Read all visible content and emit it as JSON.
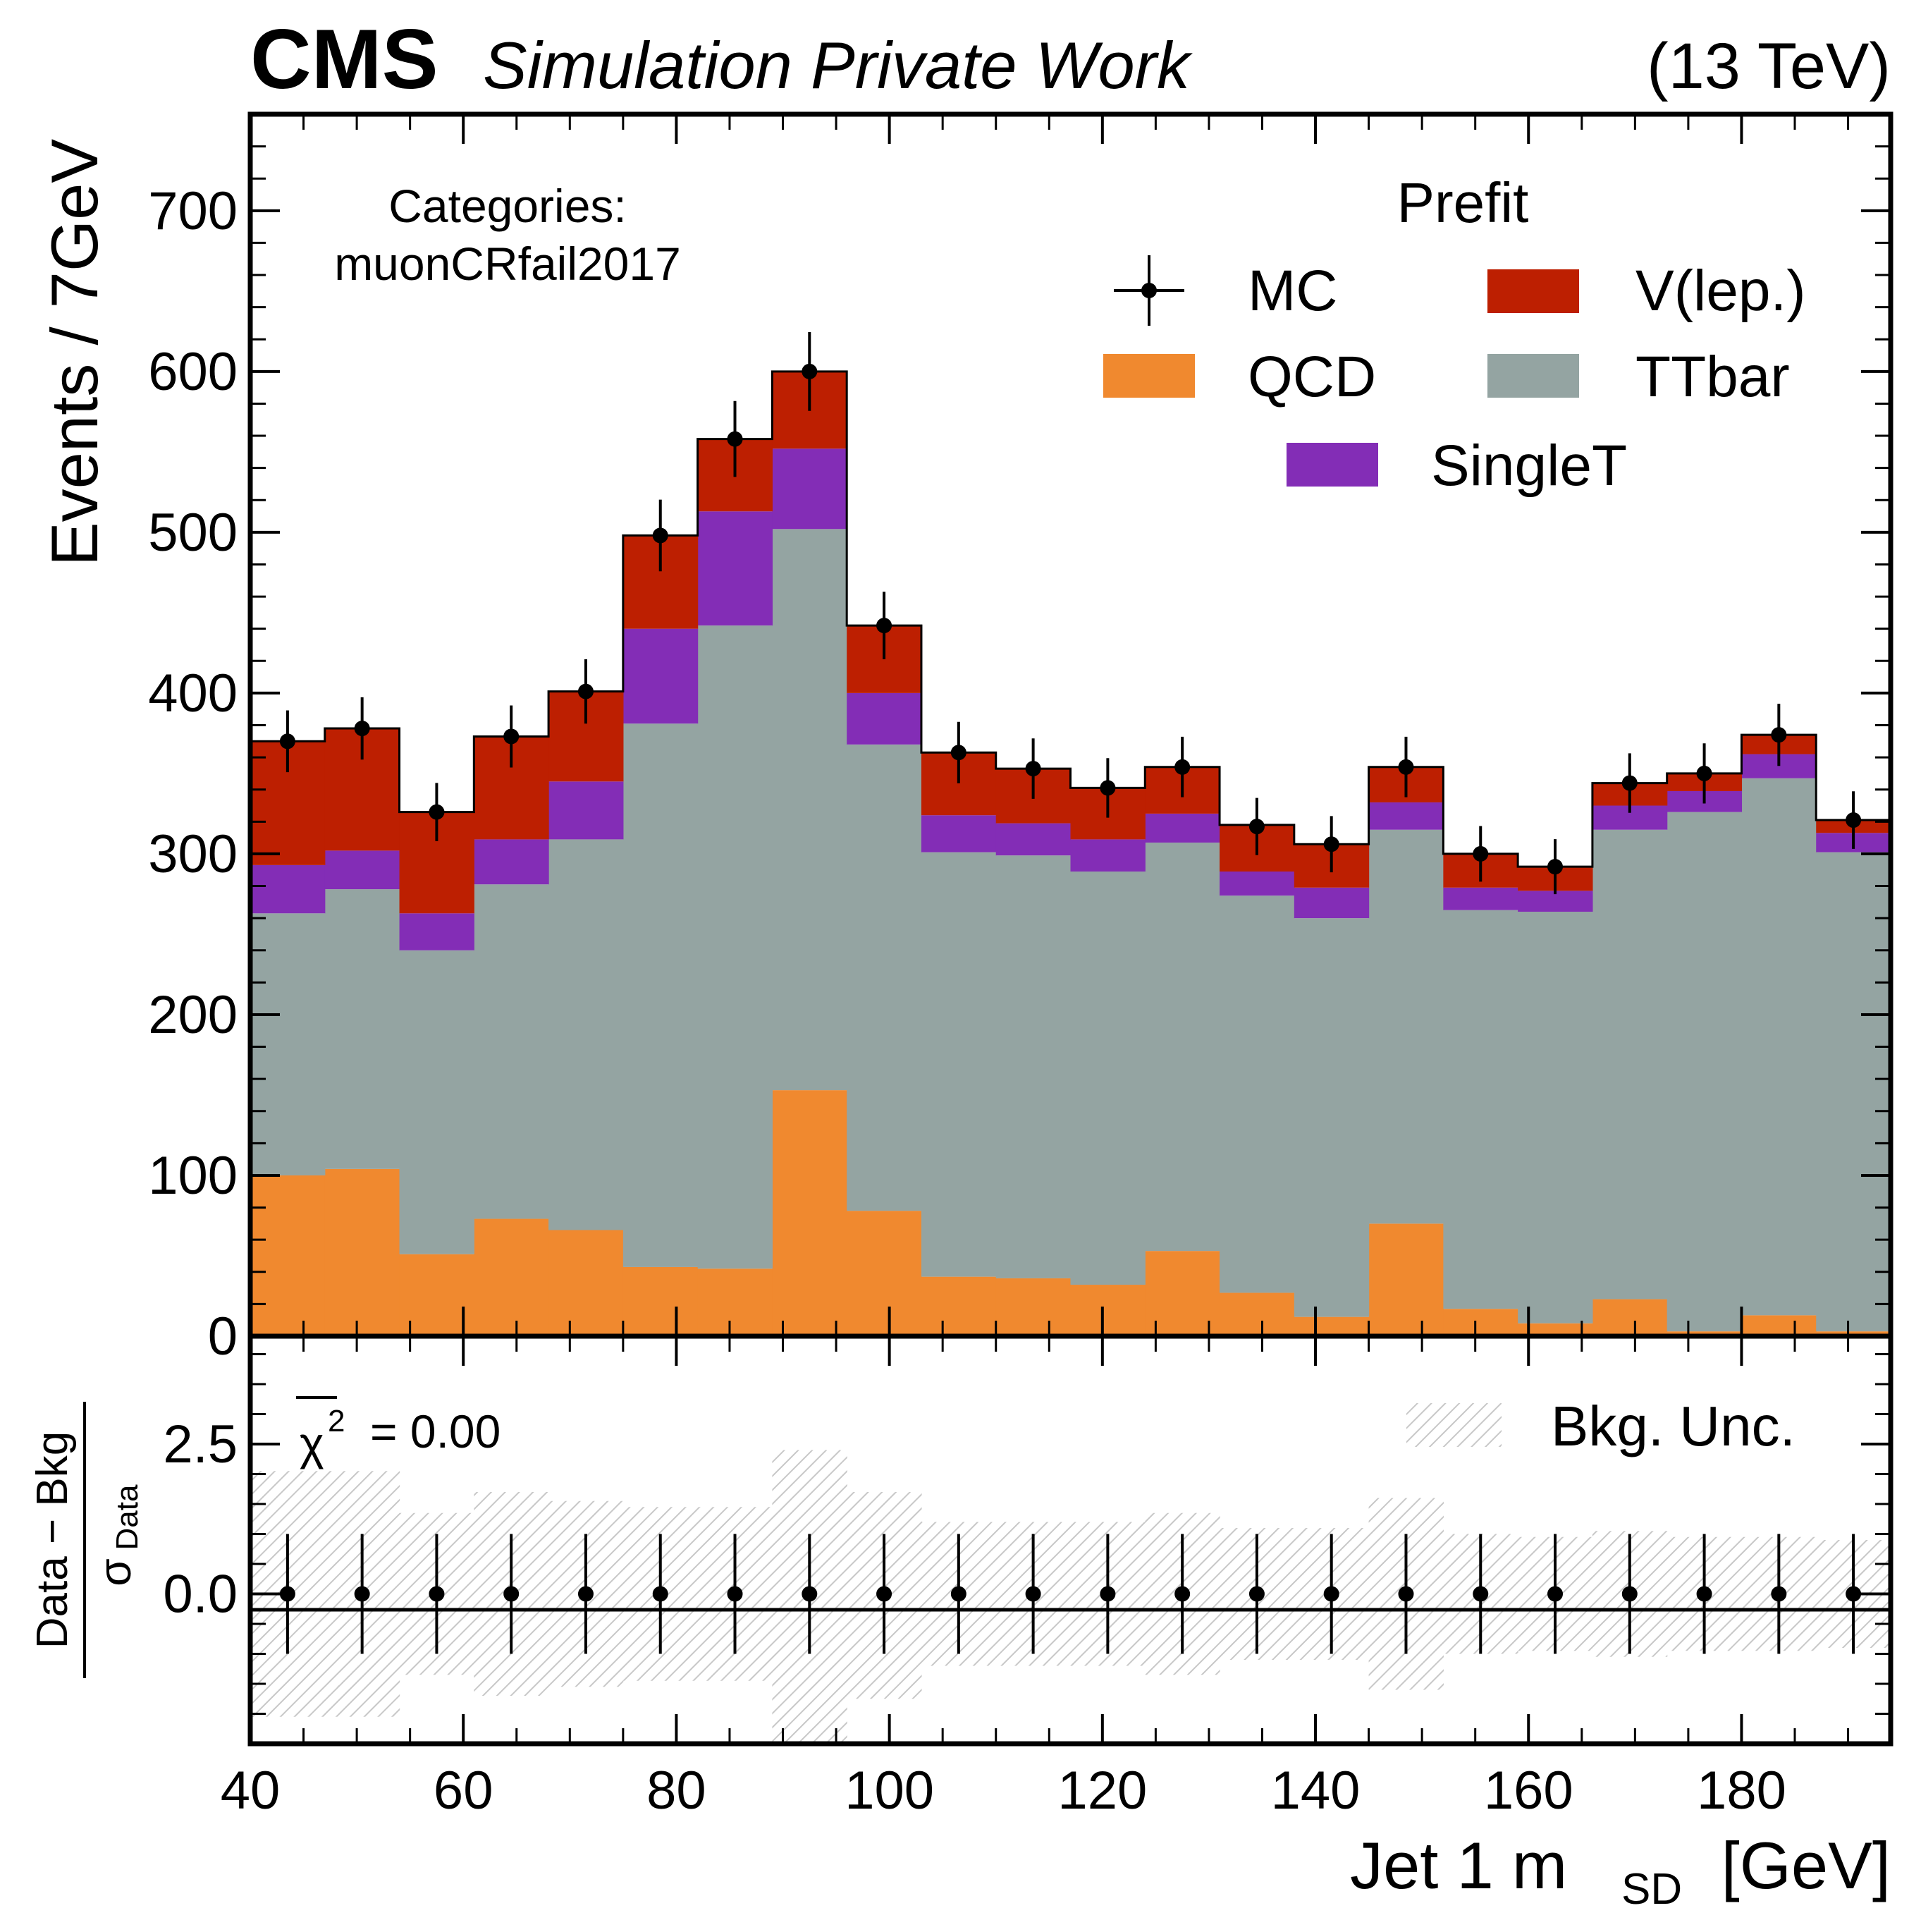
{
  "header": {
    "experiment": "CMS",
    "status": "Simulation Private Work",
    "energy": "(13 TeV)"
  },
  "annotations": {
    "category_title": "Categories:",
    "category_name": "muonCRfail2017",
    "legend_title": "Prefit",
    "chi2_label": "χ",
    "chi2_sup": "2",
    "chi2_value": "= 0.00"
  },
  "colors": {
    "QCD": "#f0892f",
    "TTbar": "#94a4a2",
    "SingleT": "#832db6",
    "V(lep.)": "#bd1f01",
    "MC": "#000000",
    "bkg_unc": "#c8c8c8"
  },
  "chart_data": [
    {
      "type": "bar",
      "stacked": true,
      "xlabel": "Jet 1 m",
      "xlabel_sub": "SD",
      "xlabel_unit": "[GeV]",
      "ylabel": "Events / 7GeV",
      "xlim": [
        40,
        194
      ],
      "ylim": [
        0,
        760
      ],
      "x_ticks": [
        40,
        60,
        80,
        100,
        120,
        140,
        160,
        180
      ],
      "y_ticks": [
        0,
        100,
        200,
        300,
        400,
        500,
        600,
        700
      ],
      "bin_edges": [
        40,
        47,
        54,
        61,
        68,
        75,
        82,
        89,
        96,
        103,
        110,
        117,
        124,
        131,
        138,
        145,
        152,
        159,
        166,
        173,
        180,
        187,
        194
      ],
      "series": [
        {
          "name": "QCD",
          "values": [
            100,
            104,
            51,
            73,
            66,
            43,
            42,
            153,
            78,
            37,
            36,
            32,
            53,
            27,
            12,
            70,
            17,
            8,
            23,
            3,
            13,
            3
          ]
        },
        {
          "name": "TTbar",
          "values": [
            163,
            174,
            189,
            208,
            243,
            338,
            400,
            349,
            290,
            264,
            263,
            257,
            254,
            247,
            248,
            245,
            248,
            256,
            292,
            323,
            334,
            298
          ]
        },
        {
          "name": "SingleT",
          "values": [
            30,
            24,
            23,
            28,
            36,
            59,
            71,
            50,
            32,
            23,
            20,
            20,
            18,
            15,
            19,
            17,
            14,
            13,
            15,
            13,
            15,
            12
          ]
        },
        {
          "name": "V(lep.)",
          "values": [
            77,
            76,
            63,
            64,
            56,
            58,
            45,
            48,
            42,
            39,
            34,
            32,
            29,
            29,
            27,
            22,
            21,
            15,
            14,
            11,
            12,
            8
          ]
        }
      ],
      "mc_points": {
        "name": "MC",
        "x": [
          43.5,
          50.5,
          57.5,
          64.5,
          71.5,
          78.5,
          85.5,
          92.5,
          99.5,
          106.5,
          113.5,
          120.5,
          127.5,
          134.5,
          141.5,
          148.5,
          155.5,
          162.5,
          169.5,
          176.5,
          183.5,
          190.5
        ],
        "y": [
          370,
          378,
          326,
          373,
          401,
          498,
          558,
          600,
          442,
          363,
          353,
          341,
          354,
          317,
          306,
          354,
          300,
          292,
          344,
          350,
          374,
          321
        ],
        "err": [
          19.2,
          19.4,
          18.1,
          19.3,
          20.0,
          22.3,
          23.6,
          24.5,
          21.0,
          19.1,
          18.8,
          18.5,
          18.8,
          17.8,
          17.5,
          18.8,
          17.3,
          17.1,
          18.5,
          18.7,
          19.3,
          17.9
        ]
      },
      "legend": {
        "title": "Prefit",
        "entries": [
          "MC",
          "V(lep.)",
          "QCD",
          "TTbar",
          "SingleT"
        ],
        "placement": "top-right"
      },
      "grid": false
    },
    {
      "type": "scatter",
      "xlim": [
        40,
        194
      ],
      "ylim": [
        -2.5,
        4.3
      ],
      "y_ticks": [
        0.0,
        2.5
      ],
      "y_tick_labels": [
        "0.0",
        "2.5"
      ],
      "ylabel_num": "Data − Bkg",
      "ylabel_den": "σ",
      "ylabel_den_sub": "Data",
      "x": [
        43.5,
        50.5,
        57.5,
        64.5,
        71.5,
        78.5,
        85.5,
        92.5,
        99.5,
        106.5,
        113.5,
        120.5,
        127.5,
        134.5,
        141.5,
        148.5,
        155.5,
        162.5,
        169.5,
        176.5,
        183.5,
        190.5
      ],
      "y": [
        0,
        0,
        0,
        0,
        0,
        0,
        0,
        0,
        0,
        0,
        0,
        0,
        0,
        0,
        0,
        0,
        0,
        0,
        0,
        0,
        0,
        0
      ],
      "err": [
        1,
        1,
        1,
        1,
        1,
        1,
        1,
        1,
        1,
        1,
        1,
        1,
        1,
        1,
        1,
        1,
        1,
        1,
        1,
        1,
        1,
        1
      ],
      "bkg_unc": {
        "name": "Bkg. Unc.",
        "lo": [
          -2.05,
          -2.05,
          -1.35,
          -1.7,
          -1.55,
          -1.45,
          -1.45,
          -2.5,
          -1.75,
          -1.2,
          -1.2,
          -1.2,
          -1.35,
          -1.1,
          -1.1,
          -1.6,
          -1.0,
          -0.95,
          -1.05,
          -0.95,
          -0.95,
          -0.9
        ],
        "hi": [
          2.05,
          2.05,
          1.35,
          1.7,
          1.55,
          1.45,
          1.45,
          2.4,
          1.7,
          1.2,
          1.2,
          1.2,
          1.35,
          1.1,
          1.1,
          1.6,
          1.0,
          0.95,
          1.05,
          0.95,
          0.95,
          0.9
        ]
      },
      "legend": {
        "entries": [
          "Bkg. Unc."
        ],
        "placement": "top-right"
      }
    }
  ]
}
